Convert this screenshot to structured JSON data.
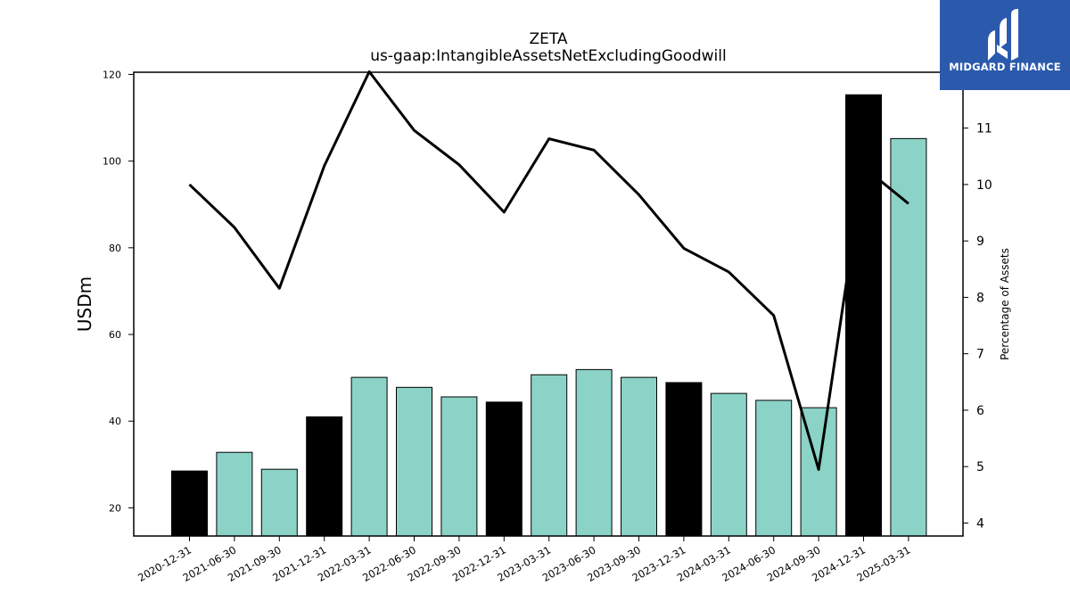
{
  "brand": {
    "name": "MIDGARD FINANCE",
    "mark_icon": "midgard-logo-icon",
    "background_color": "#2b5aad"
  },
  "chart_data": {
    "type": "bar",
    "title": "ZETA",
    "subtitle": "us-gaap:IntangibleAssetsNetExcludingGoodwill",
    "ylabel": "USDm",
    "y2label": "Percentage of Assets",
    "ylim": [
      13.5,
      120.5
    ],
    "y2lim": [
      3.77,
      11.99
    ],
    "yticks": [
      20,
      40,
      60,
      80,
      100,
      120
    ],
    "y2ticks": [
      4,
      5,
      6,
      7,
      8,
      9,
      10,
      11
    ],
    "grid": false,
    "colors": {
      "q4_bar": "#000000",
      "other_bar": "#8cd3c7",
      "line": "#000000"
    },
    "categories": [
      "2020-12-31",
      "2021-06-30",
      "2021-09-30",
      "2021-12-31",
      "2022-03-31",
      "2022-06-30",
      "2022-09-30",
      "2022-12-31",
      "2023-03-31",
      "2023-06-30",
      "2023-09-30",
      "2023-12-31",
      "2024-03-31",
      "2024-06-30",
      "2024-09-30",
      "2024-12-31",
      "2025-03-31"
    ],
    "series": [
      {
        "type": "bar",
        "axis": "left",
        "values": [
          28.5,
          32.8,
          28.9,
          41.0,
          50.1,
          47.8,
          45.6,
          44.4,
          50.7,
          51.9,
          50.1,
          48.9,
          46.4,
          44.8,
          43.1,
          115.3,
          105.2
        ],
        "highlight": [
          true,
          false,
          false,
          true,
          false,
          false,
          false,
          true,
          false,
          false,
          false,
          true,
          false,
          false,
          false,
          true,
          false
        ]
      },
      {
        "type": "line",
        "axis": "right",
        "values": [
          10.0,
          9.24,
          8.16,
          10.33,
          12.0,
          10.96,
          10.35,
          9.51,
          10.81,
          10.61,
          9.82,
          8.87,
          8.45,
          7.68,
          4.95,
          10.31,
          9.66
        ]
      }
    ]
  }
}
